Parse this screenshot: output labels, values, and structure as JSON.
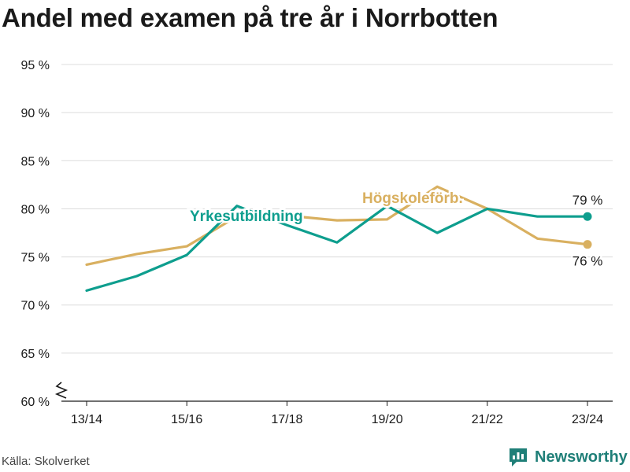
{
  "title": "Andel med examen på tre år i Norrbotten",
  "source": "Källa: Skolverket",
  "brand": {
    "name": "Newsworthy",
    "icon": "newsworthy-logo-icon",
    "color": "#1f7f78"
  },
  "chart_data": {
    "type": "line",
    "title": "Andel med examen på tre år i Norrbotten",
    "xlabel": "",
    "ylabel": "",
    "ylim": [
      60,
      95
    ],
    "y_ticks": [
      "95 %",
      "90 %",
      "85 %",
      "80 %",
      "75 %",
      "70 %",
      "65 %",
      "60 %"
    ],
    "y_tick_values": [
      95,
      90,
      85,
      80,
      75,
      70,
      65,
      60
    ],
    "axis_break": true,
    "grid": true,
    "x": [
      "13/14",
      "14/15",
      "15/16",
      "16/17",
      "17/18",
      "18/19",
      "19/20",
      "20/21",
      "21/22",
      "22/23",
      "23/24"
    ],
    "x_tick_labels": [
      "13/14",
      "15/16",
      "17/18",
      "19/20",
      "21/22",
      "23/24"
    ],
    "series": [
      {
        "name": "Yrkesutbildning",
        "color": "#0e9e8e",
        "values": [
          71.5,
          73.0,
          75.2,
          80.3,
          78.3,
          76.5,
          80.3,
          77.5,
          80.0,
          79.2,
          79.2
        ],
        "end_label": "79 %",
        "end_label_position": "above"
      },
      {
        "name": "Högskoleförb.",
        "color": "#d9b060",
        "values": [
          74.2,
          75.3,
          76.1,
          79.2,
          79.3,
          78.8,
          78.9,
          82.3,
          80.0,
          76.9,
          76.3
        ],
        "end_label": "76 %",
        "end_label_position": "below"
      }
    ]
  }
}
